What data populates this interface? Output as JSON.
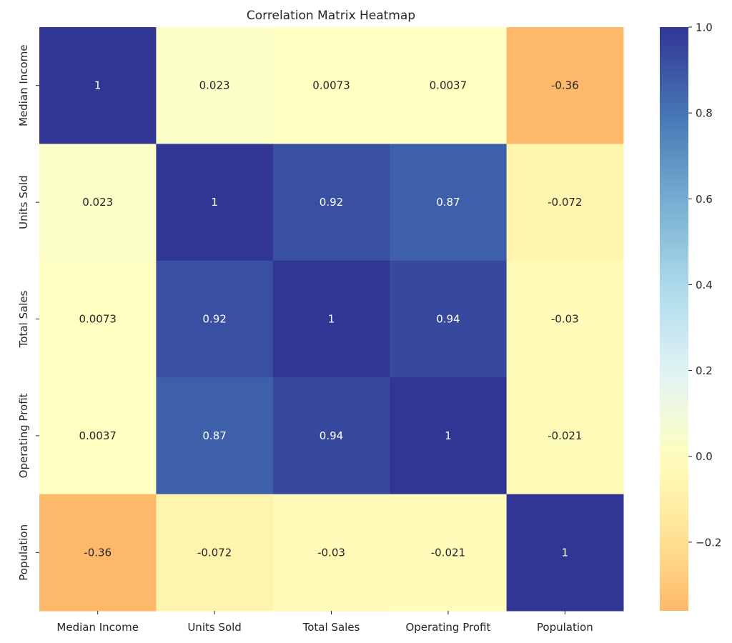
{
  "chart_data": {
    "type": "heatmap",
    "title": "Correlation Matrix Heatmap",
    "xlabel": "",
    "ylabel": "",
    "x_labels": [
      "Median Income",
      "Units Sold",
      "Total Sales",
      "Operating Profit",
      "Population"
    ],
    "y_labels": [
      "Median Income",
      "Units Sold",
      "Total Sales",
      "Operating Profit",
      "Population"
    ],
    "values": [
      [
        1,
        0.023,
        0.0073,
        0.0037,
        -0.36
      ],
      [
        0.023,
        1,
        0.92,
        0.87,
        -0.072
      ],
      [
        0.0073,
        0.92,
        1,
        0.94,
        -0.03
      ],
      [
        0.0037,
        0.87,
        0.94,
        1,
        -0.021
      ],
      [
        -0.36,
        -0.072,
        -0.03,
        -0.021,
        1
      ]
    ],
    "annotations": [
      [
        "1",
        "0.023",
        "0.0073",
        "0.0037",
        "-0.36"
      ],
      [
        "0.023",
        "1",
        "0.92",
        "0.87",
        "-0.072"
      ],
      [
        "0.0073",
        "0.92",
        "1",
        "0.94",
        "-0.03"
      ],
      [
        "0.0037",
        "0.87",
        "0.94",
        "1",
        "-0.021"
      ],
      [
        "-0.36",
        "-0.072",
        "-0.03",
        "-0.021",
        "1"
      ]
    ],
    "colormap": "RdYlBu",
    "center": 0,
    "vlim": [
      -0.36,
      1.0
    ],
    "colorbar": {
      "ticks": [
        1.0,
        0.8,
        0.6,
        0.4,
        0.2,
        0.0,
        -0.2
      ],
      "tick_labels": [
        "1.0",
        "0.8",
        "0.6",
        "0.4",
        "0.2",
        "0.0",
        "−0.2"
      ],
      "placement": "right"
    },
    "grid": false
  }
}
